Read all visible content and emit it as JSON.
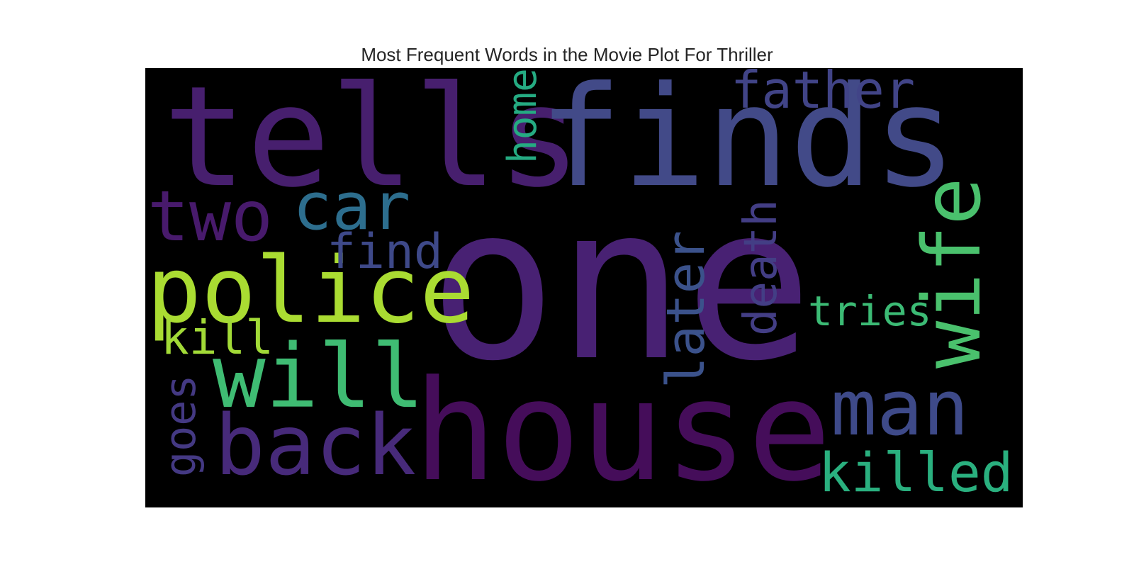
{
  "chart_data": {
    "type": "wordcloud",
    "title": "Most Frequent Words in the Movie Plot For Thriller",
    "background": "#000000",
    "colormap": "viridis",
    "words": [
      {
        "text": "one",
        "color": "#482173",
        "orientation": "horizontal"
      },
      {
        "text": "tells",
        "color": "#471f6e",
        "orientation": "horizontal"
      },
      {
        "text": "finds",
        "color": "#424a88",
        "orientation": "horizontal"
      },
      {
        "text": "house",
        "color": "#450d5a",
        "orientation": "horizontal"
      },
      {
        "text": "police",
        "color": "#aadc32",
        "orientation": "horizontal"
      },
      {
        "text": "will",
        "color": "#3fbc73",
        "orientation": "horizontal"
      },
      {
        "text": "back",
        "color": "#472a7a",
        "orientation": "horizontal"
      },
      {
        "text": "man",
        "color": "#3e4a89",
        "orientation": "horizontal"
      },
      {
        "text": "wife",
        "color": "#4ac16d",
        "orientation": "vertical"
      },
      {
        "text": "two",
        "color": "#481a6c",
        "orientation": "horizontal"
      },
      {
        "text": "car",
        "color": "#2d6e8e",
        "orientation": "horizontal"
      },
      {
        "text": "father",
        "color": "#414487",
        "orientation": "horizontal"
      },
      {
        "text": "killed",
        "color": "#2ab07f",
        "orientation": "horizontal"
      },
      {
        "text": "later",
        "color": "#3b528b",
        "orientation": "vertical"
      },
      {
        "text": "find",
        "color": "#3e4989",
        "orientation": "horizontal"
      },
      {
        "text": "death",
        "color": "#433e85",
        "orientation": "vertical"
      },
      {
        "text": "kill",
        "color": "#a2da37",
        "orientation": "horizontal"
      },
      {
        "text": "goes",
        "color": "#443983",
        "orientation": "vertical"
      },
      {
        "text": "home",
        "color": "#25ab82",
        "orientation": "vertical"
      },
      {
        "text": "tries",
        "color": "#3cbb75",
        "orientation": "horizontal"
      }
    ]
  }
}
